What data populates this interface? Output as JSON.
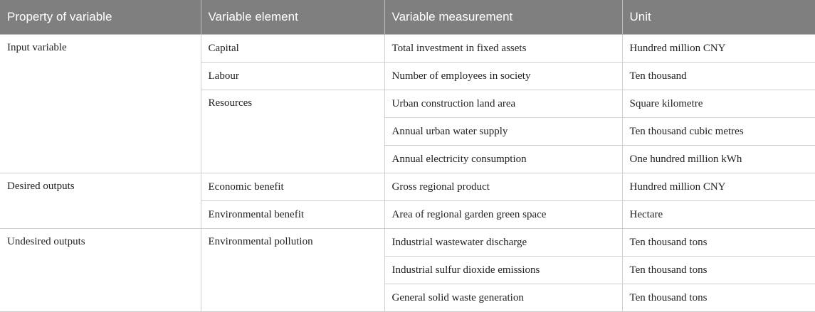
{
  "header": [
    "Property of variable",
    "Variable element",
    "Variable measurement",
    "Unit"
  ],
  "groups": [
    {
      "property": "Input variable",
      "elements": [
        {
          "name": "Capital",
          "rows": [
            {
              "measurement": "Total investment in fixed assets",
              "unit": "Hundred million CNY"
            }
          ]
        },
        {
          "name": "Labour",
          "rows": [
            {
              "measurement": "Number of employees in society",
              "unit": "Ten thousand"
            }
          ]
        },
        {
          "name": "Resources",
          "rows": [
            {
              "measurement": "Urban construction land area",
              "unit": "Square kilometre"
            },
            {
              "measurement": "Annual urban water supply",
              "unit": "Ten thousand cubic metres"
            },
            {
              "measurement": "Annual electricity consumption",
              "unit": "One hundred million kWh"
            }
          ]
        }
      ]
    },
    {
      "property": "Desired outputs",
      "elements": [
        {
          "name": "Economic benefit",
          "rows": [
            {
              "measurement": "Gross regional product",
              "unit": "Hundred million CNY"
            }
          ]
        },
        {
          "name": "Environmental benefit",
          "rows": [
            {
              "measurement": "Area of regional garden green space",
              "unit": "Hectare"
            }
          ]
        }
      ]
    },
    {
      "property": "Undesired outputs",
      "elements": [
        {
          "name": "Environmental pollution",
          "rows": [
            {
              "measurement": "Industrial wastewater discharge",
              "unit": "Ten thousand tons"
            },
            {
              "measurement": "Industrial sulfur dioxide emissions",
              "unit": "Ten thousand tons"
            },
            {
              "measurement": "General solid waste generation",
              "unit": "Ten thousand tons"
            }
          ]
        }
      ]
    }
  ]
}
